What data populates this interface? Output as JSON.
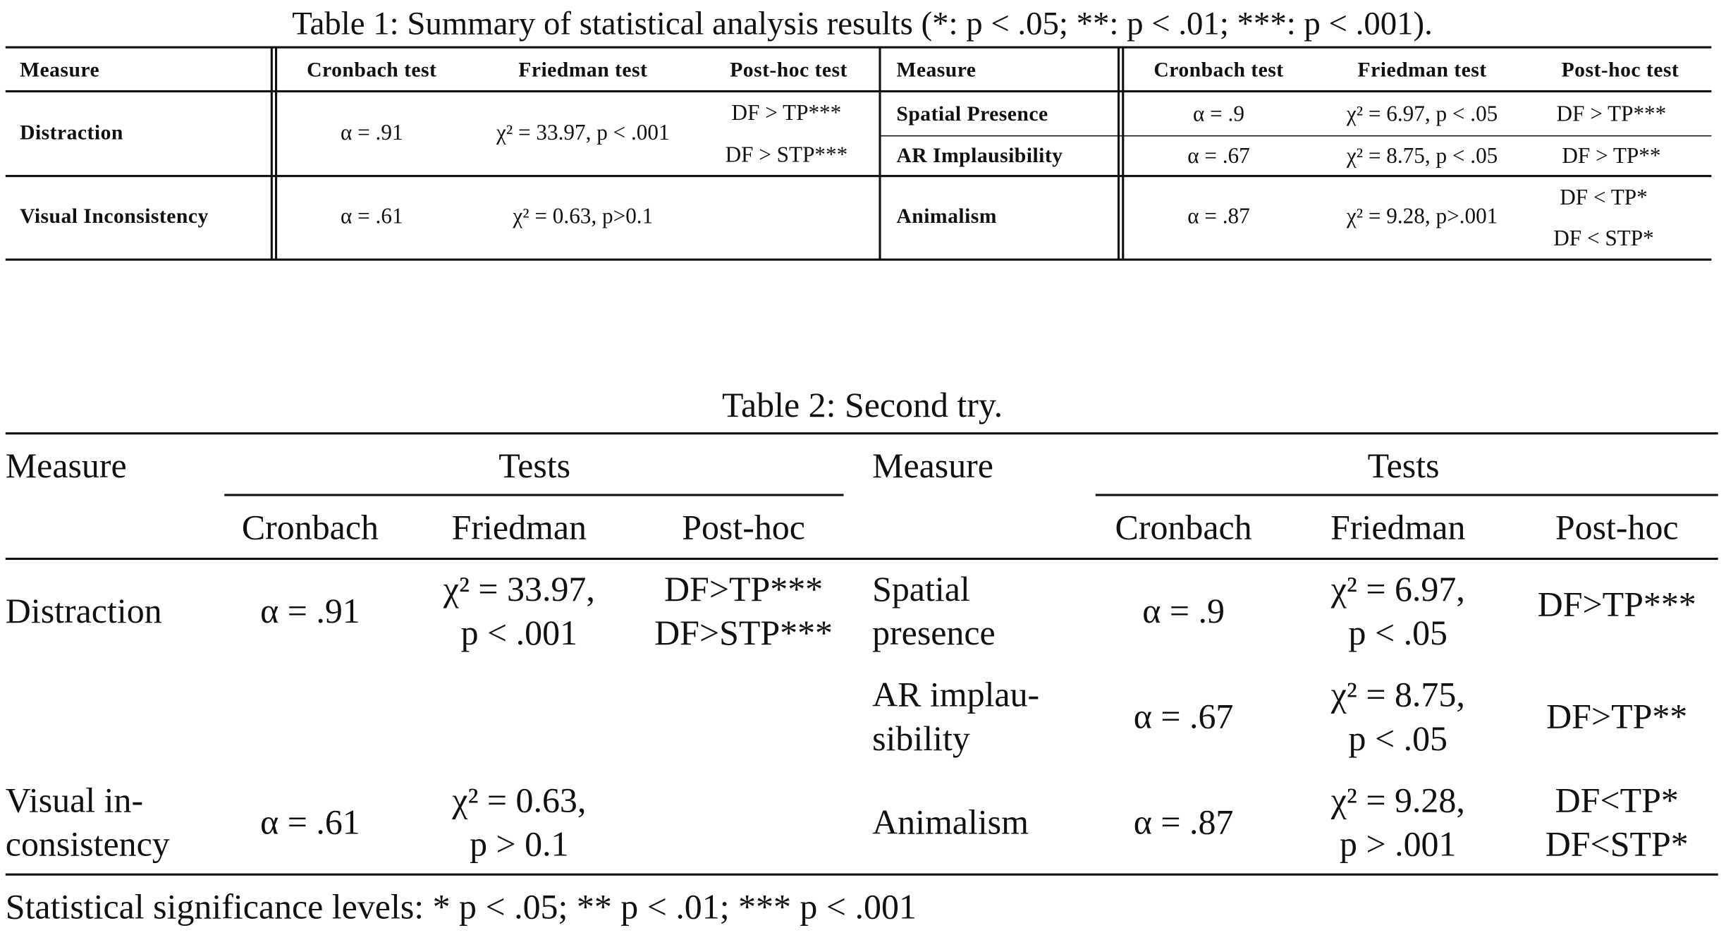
{
  "table1": {
    "caption": "Table 1: Summary of statistical analysis results (*: p < .05; **: p < .01; ***: p < .001).",
    "header": [
      "Measure",
      "Cronbach test",
      "Friedman test",
      "Post-hoc test",
      "Measure",
      "Cronbach test",
      "Friedman test",
      "Post-hoc test"
    ],
    "rows_left": [
      {
        "measure": "Distraction",
        "cronbach": "α = .91",
        "friedman": "χ² = 33.97, p < .001",
        "posthoc": [
          "DF > TP***",
          "DF > STP***"
        ]
      },
      {
        "measure": "Visual Inconsistency",
        "cronbach": "α = .61",
        "friedman": "χ² = 0.63, p>0.1"
      }
    ],
    "rows_right": [
      {
        "measure": "Spatial Presence",
        "cronbach": "α = .9",
        "friedman": "χ² = 6.97, p < .05",
        "posthoc": [
          "DF > TP***"
        ]
      },
      {
        "measure": "AR Implausibility",
        "cronbach": "α = .67",
        "friedman": "χ² = 8.75, p < .05",
        "posthoc": [
          "DF > TP**"
        ]
      },
      {
        "measure": "Animalism",
        "cronbach": "α = .87",
        "friedman": "χ² = 9.28, p>.001",
        "posthoc": [
          "DF < TP*",
          "DF < STP*"
        ]
      }
    ]
  },
  "table2": {
    "caption": "Table 2: Second try.",
    "header": {
      "measure": "Measure",
      "group": "Tests",
      "columns": [
        "Cronbach",
        "Friedman",
        "Post-hoc"
      ]
    },
    "rows_left": [
      {
        "measure": [
          "Distraction"
        ],
        "cronbach": "α = .91",
        "friedman": [
          "χ² = 33.97,",
          "p < .001"
        ],
        "posthoc": [
          "DF>TP***",
          "DF>STP***"
        ]
      },
      {
        "measure": [
          "Visual in-",
          "consistency"
        ],
        "cronbach": "α = .61",
        "friedman": [
          "χ² = 0.63,",
          "p > 0.1"
        ]
      }
    ],
    "rows_right": [
      {
        "measure": [
          "Spatial",
          "presence"
        ],
        "cronbach": "α = .9",
        "friedman": [
          "χ² = 6.97,",
          "p < .05"
        ],
        "posthoc": [
          "DF>TP***"
        ]
      },
      {
        "measure": [
          "AR implau-",
          "sibility"
        ],
        "cronbach": "α = .67",
        "friedman": [
          "χ² = 8.75,",
          "p < .05"
        ],
        "posthoc": [
          "DF>TP**"
        ]
      },
      {
        "measure": [
          "Animalism"
        ],
        "cronbach": "α = .87",
        "friedman": [
          "χ² = 9.28,",
          "p > .001"
        ],
        "posthoc": [
          "DF<TP*",
          "DF<STP*"
        ]
      }
    ],
    "footnote": "Statistical significance levels: * p < .05; ** p < .01; *** p < .001"
  }
}
